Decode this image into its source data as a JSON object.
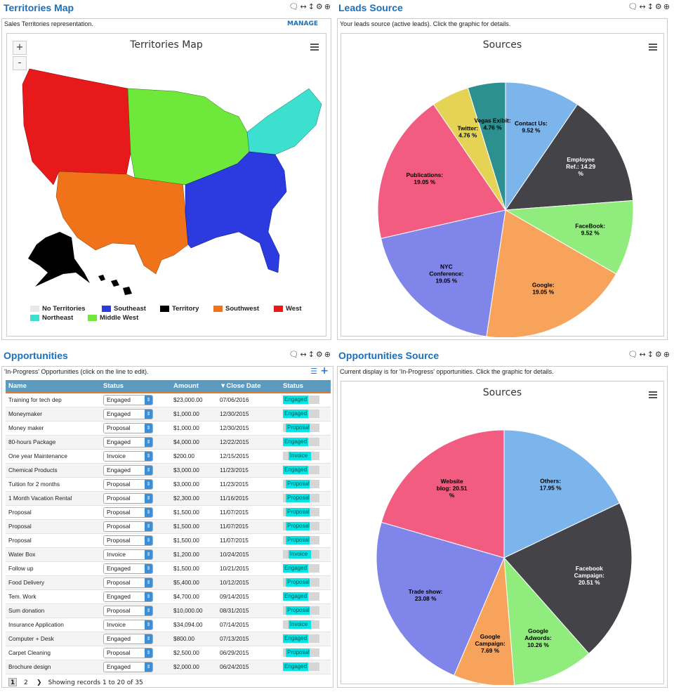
{
  "territories": {
    "title": "Territories Map",
    "description": "Sales Territories representation.",
    "manage": "MANAGE",
    "chart_title": "Territories Map",
    "zoom_in": "+",
    "zoom_out": "-",
    "legend": [
      {
        "label": "No Territories",
        "color": "#e8e8e8"
      },
      {
        "label": "Southeast",
        "color": "#2b3be0"
      },
      {
        "label": "Territory",
        "color": "#000000"
      },
      {
        "label": "Southwest",
        "color": "#f0731a"
      },
      {
        "label": "West",
        "color": "#e8191b"
      },
      {
        "label": "Northeast",
        "color": "#3de0cf"
      },
      {
        "label": "Middle West",
        "color": "#6ee83a"
      }
    ]
  },
  "leads": {
    "title": "Leads Source",
    "description": "Your leads source (active leads). Click the graphic for details.",
    "chart_title": "Sources"
  },
  "opportunities": {
    "title": "Opportunities",
    "description": "'In-Progress' Opportunities (click on the line to edit).",
    "columns": [
      "Name",
      "Status",
      "Amount",
      "▼Close Date",
      "Status"
    ],
    "rows": [
      {
        "name": "Training for tech dep",
        "status": "Engaged",
        "amount": "$23,000.00",
        "date": "07/06/2016",
        "pct": 0.7
      },
      {
        "name": "Moneymaker",
        "status": "Engaged",
        "amount": "$1,000.00",
        "date": "12/30/2015",
        "pct": 0.7
      },
      {
        "name": "Money maker",
        "status": "Proposal",
        "amount": "$1,000.00",
        "date": "12/30/2015",
        "pct": 0.72
      },
      {
        "name": "80-hours Package",
        "status": "Engaged",
        "amount": "$4,000.00",
        "date": "12/22/2015",
        "pct": 0.7
      },
      {
        "name": "One year Maintenance",
        "status": "Invoice",
        "amount": "$200.00",
        "date": "12/15/2015",
        "pct": 0.85
      },
      {
        "name": "Chemical Products",
        "status": "Engaged",
        "amount": "$3,000.00",
        "date": "11/23/2015",
        "pct": 0.7
      },
      {
        "name": "Tuition for 2 months",
        "status": "Proposal",
        "amount": "$3,000.00",
        "date": "11/23/2015",
        "pct": 0.72
      },
      {
        "name": "1 Month Vacation Rental",
        "status": "Proposal",
        "amount": "$2,300.00",
        "date": "11/16/2015",
        "pct": 0.72
      },
      {
        "name": "Proposal",
        "status": "Proposal",
        "amount": "$1,500.00",
        "date": "11/07/2015",
        "pct": 0.72
      },
      {
        "name": "Proposal",
        "status": "Proposal",
        "amount": "$1,500.00",
        "date": "11/07/2015",
        "pct": 0.72
      },
      {
        "name": "Proposal",
        "status": "Proposal",
        "amount": "$1,500.00",
        "date": "11/07/2015",
        "pct": 0.72
      },
      {
        "name": "Water Box",
        "status": "Invoice",
        "amount": "$1,200.00",
        "date": "10/24/2015",
        "pct": 0.85
      },
      {
        "name": "Follow up",
        "status": "Engaged",
        "amount": "$1,500.00",
        "date": "10/21/2015",
        "pct": 0.7
      },
      {
        "name": "Food Delivery",
        "status": "Proposal",
        "amount": "$5,400.00",
        "date": "10/12/2015",
        "pct": 0.72
      },
      {
        "name": "Tem. Work",
        "status": "Engaged",
        "amount": "$4,700.00",
        "date": "09/14/2015",
        "pct": 0.7
      },
      {
        "name": "Sum donation",
        "status": "Proposal",
        "amount": "$10,000.00",
        "date": "08/31/2015",
        "pct": 0.72
      },
      {
        "name": "Insurance Application",
        "status": "Invoice",
        "amount": "$34,094.00",
        "date": "07/14/2015",
        "pct": 0.85
      },
      {
        "name": "Computer + Desk",
        "status": "Engaged",
        "amount": "$800.00",
        "date": "07/13/2015",
        "pct": 0.7
      },
      {
        "name": "Carpet Cleaning",
        "status": "Proposal",
        "amount": "$2,500.00",
        "date": "06/29/2015",
        "pct": 0.72
      },
      {
        "name": "Brochure design",
        "status": "Engaged",
        "amount": "$2,000.00",
        "date": "06/24/2015",
        "pct": 0.7
      }
    ],
    "pager": {
      "page1": "1",
      "page2": "2",
      "next": "❯",
      "info": "Showing records 1 to 20 of 35"
    }
  },
  "opp_source": {
    "title": "Opportunities Source",
    "description": "Current display is for 'In-Progress' opportunities. Click the graphic for details.",
    "chart_title": "Sources"
  },
  "chart_data": [
    {
      "type": "pie",
      "title": "Sources",
      "slices": [
        {
          "label": "Contact Us",
          "value": 9.52,
          "text": "Contact Us:|9.52 %",
          "color": "#7cb5ec"
        },
        {
          "label": "Employee Ref.",
          "value": 14.29,
          "text": "Employee|Ref.: 14.29|%",
          "color": "#434348"
        },
        {
          "label": "FaceBook",
          "value": 9.52,
          "text": "FaceBook:|9.52 %",
          "color": "#90ed7d"
        },
        {
          "label": "Google",
          "value": 19.05,
          "text": "Google:|19.05 %",
          "color": "#f7a35c"
        },
        {
          "label": "NYC Conference",
          "value": 19.05,
          "text": "NYC|Conference:|19.05 %",
          "color": "#8085e9"
        },
        {
          "label": "Publications",
          "value": 19.05,
          "text": "Publications:|19.05 %",
          "color": "#f15c80"
        },
        {
          "label": "Twitter",
          "value": 4.76,
          "text": "Twitter:|4.76 %",
          "color": "#e4d354"
        },
        {
          "label": "Vegas Exibit",
          "value": 4.76,
          "text": "Vegas Exibit:|4.76 %",
          "color": "#2b908f"
        }
      ]
    },
    {
      "type": "pie",
      "title": "Sources",
      "slices": [
        {
          "label": "Others",
          "value": 17.95,
          "text": "Others:|17.95 %",
          "color": "#7cb5ec"
        },
        {
          "label": "Facebook Campaign",
          "value": 20.51,
          "text": "Facebook|Campaign:|20.51 %",
          "color": "#434348"
        },
        {
          "label": "Google Adwords",
          "value": 10.26,
          "text": "Google|Adwords:|10.26 %",
          "color": "#90ed7d"
        },
        {
          "label": "Google Campaign",
          "value": 7.69,
          "text": "Google|Campaign:|7.69 %",
          "color": "#f7a35c"
        },
        {
          "label": "Trade show",
          "value": 23.08,
          "text": "Trade show:|23.08 %",
          "color": "#8085e9"
        },
        {
          "label": "Website blog",
          "value": 20.51,
          "text": "Website|blog: 20.51|%",
          "color": "#f15c80"
        }
      ]
    }
  ]
}
